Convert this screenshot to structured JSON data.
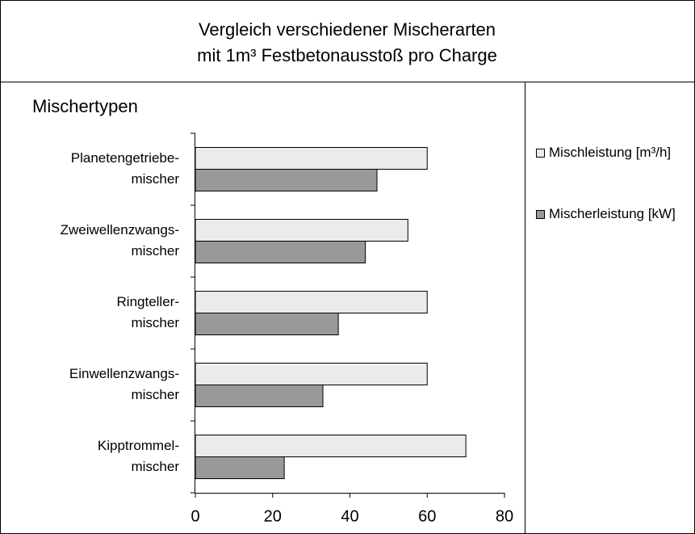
{
  "chart_data": {
    "type": "hbar",
    "title": [
      "Vergleich verschiedener Mischerarten",
      "mit 1m³ Festbetonausstoß pro Charge"
    ],
    "y_label": "Mischertypen",
    "categories": [
      [
        "Planetengetriebe-",
        "mischer"
      ],
      [
        "Zweiwellenzwangs-",
        "mischer"
      ],
      [
        "Ringteller-",
        "mischer"
      ],
      [
        "Einwellenzwangs-",
        "mischer"
      ],
      [
        "Kipptrommel-",
        "mischer"
      ]
    ],
    "series": [
      {
        "name": "Mischleistung [m³/h]",
        "color": "#ebebeb",
        "values": [
          60,
          55,
          60,
          60,
          70
        ]
      },
      {
        "name": "Mischerleistung [kW]",
        "color": "#999999",
        "values": [
          47,
          44,
          37,
          33,
          23
        ]
      }
    ],
    "xlim": [
      0,
      80
    ],
    "xticks": [
      0,
      20,
      40,
      60,
      80
    ]
  }
}
